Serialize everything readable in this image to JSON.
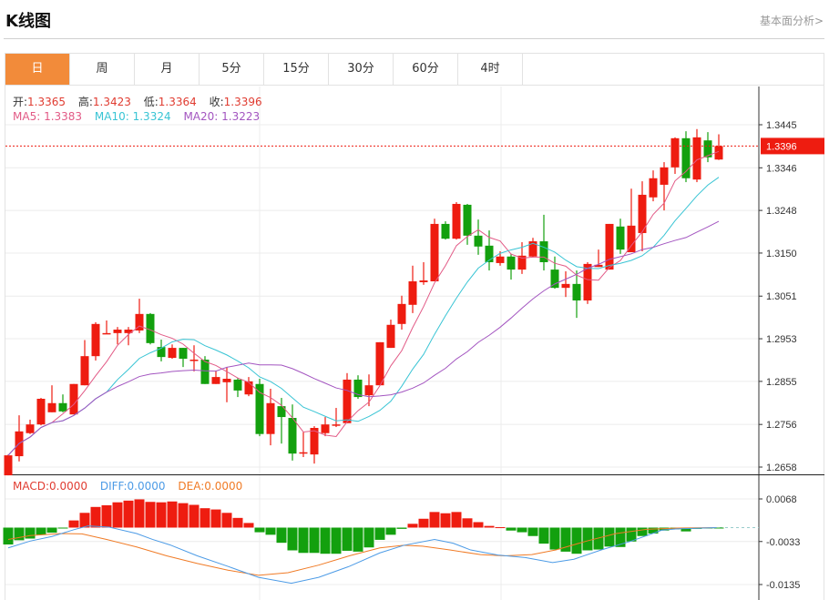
{
  "header": {
    "title": "K线图",
    "fundamental_link": "基本面分析>"
  },
  "tabs": [
    {
      "label": "日",
      "active": true
    },
    {
      "label": "周"
    },
    {
      "label": "月"
    },
    {
      "label": "5分"
    },
    {
      "label": "15分"
    },
    {
      "label": "30分"
    },
    {
      "label": "60分"
    },
    {
      "label": "4时"
    }
  ],
  "ohlc_info": {
    "open_label": "开:",
    "open": "1.3365",
    "high_label": "高:",
    "high": "1.3423",
    "low_label": "低:",
    "low": "1.3364",
    "close_label": "收:",
    "close": "1.3396"
  },
  "ma_info": {
    "ma5_label": "MA5:",
    "ma5": "1.3383",
    "ma10_label": "MA10:",
    "ma10": "1.3324",
    "ma20_label": "MA20:",
    "ma20": "1.3223"
  },
  "macd_info": {
    "macd_label": "MACD:",
    "macd": "0.0000",
    "diff_label": "DIFF:",
    "diff": "0.0000",
    "dea_label": "DEA:",
    "dea": "0.0000"
  },
  "colors": {
    "up": "#ee1c10",
    "down": "#13a00e",
    "ma5": "#e25a86",
    "ma10": "#38c4d4",
    "ma20": "#a355c0",
    "diff": "#4c9be6",
    "dea": "#f07b26",
    "accent": "#f28b3a"
  },
  "chart_data": {
    "type": "candlestick",
    "price_axis": {
      "ticks": [
        "1.3445",
        "1.3346",
        "1.3248",
        "1.3150",
        "1.3051",
        "1.2953",
        "1.2855",
        "1.2756",
        "1.2658"
      ],
      "range": [
        1.2658,
        1.3445
      ]
    },
    "current_price": "1.3396",
    "ohlc": [
      [
        1.2639,
        1.2687,
        1.2639,
        1.2685
      ],
      [
        1.2683,
        1.2777,
        1.2671,
        1.274
      ],
      [
        1.2736,
        1.2767,
        1.2734,
        1.2756
      ],
      [
        1.2756,
        1.2817,
        1.2754,
        1.2815
      ],
      [
        1.2784,
        1.2846,
        1.2784,
        1.2805
      ],
      [
        1.2805,
        1.2825,
        1.2784,
        1.2786
      ],
      [
        1.2779,
        1.2849,
        1.2779,
        1.2849
      ],
      [
        1.2846,
        1.295,
        1.2846,
        1.2913
      ],
      [
        1.2913,
        1.2991,
        1.2903,
        1.2987
      ],
      [
        1.2964,
        1.2995,
        1.2964,
        1.2966
      ],
      [
        1.2966,
        1.298,
        1.294,
        1.2974
      ],
      [
        1.2966,
        1.298,
        1.2938,
        1.2974
      ],
      [
        1.2972,
        1.3045,
        1.2966,
        1.301
      ],
      [
        1.301,
        1.3012,
        1.294,
        1.2943
      ],
      [
        1.2934,
        1.2951,
        1.2901,
        1.2911
      ],
      [
        1.2909,
        1.294,
        1.2907,
        1.2932
      ],
      [
        1.2932,
        1.2932,
        1.2888,
        1.2907
      ],
      [
        1.2903,
        1.2938,
        1.2878,
        1.2905
      ],
      [
        1.2905,
        1.2913,
        1.2849,
        1.2849
      ],
      [
        1.2849,
        1.288,
        1.2849,
        1.2865
      ],
      [
        1.2853,
        1.2888,
        1.2807,
        1.2861
      ],
      [
        1.2859,
        1.2863,
        1.2819,
        1.2834
      ],
      [
        1.2825,
        1.2865,
        1.2821,
        1.2855
      ],
      [
        1.2849,
        1.2861,
        1.2729,
        1.2734
      ],
      [
        1.2734,
        1.2838,
        1.2708,
        1.2805
      ],
      [
        1.2798,
        1.2817,
        1.2712,
        1.2773
      ],
      [
        1.2771,
        1.2802,
        1.2673,
        1.2689
      ],
      [
        1.2689,
        1.2738,
        1.2681,
        1.2692
      ],
      [
        1.2687,
        1.2752,
        1.2666,
        1.2748
      ],
      [
        1.2736,
        1.2773,
        1.2729,
        1.2756
      ],
      [
        1.2754,
        1.2794,
        1.275,
        1.2756
      ],
      [
        1.2759,
        1.2874,
        1.2759,
        1.2859
      ],
      [
        1.2859,
        1.2869,
        1.2815,
        1.2819
      ],
      [
        1.2823,
        1.2871,
        1.2798,
        1.2846
      ],
      [
        1.2846,
        1.2945,
        1.2846,
        1.2945
      ],
      [
        1.2932,
        1.2997,
        1.2932,
        1.2985
      ],
      [
        1.2987,
        1.3052,
        1.2974,
        1.3033
      ],
      [
        1.3031,
        1.3121,
        1.3012,
        1.3085
      ],
      [
        1.3083,
        1.3129,
        1.3077,
        1.3087
      ],
      [
        1.3085,
        1.3229,
        1.3085,
        1.3217
      ],
      [
        1.3217,
        1.3223,
        1.3181,
        1.3183
      ],
      [
        1.3183,
        1.3267,
        1.3181,
        1.3263
      ],
      [
        1.3261,
        1.3263,
        1.3169,
        1.319
      ],
      [
        1.319,
        1.3227,
        1.3146,
        1.3165
      ],
      [
        1.3167,
        1.3202,
        1.311,
        1.3129
      ],
      [
        1.3127,
        1.3154,
        1.3121,
        1.3142
      ],
      [
        1.3142,
        1.3148,
        1.3089,
        1.3112
      ],
      [
        1.3112,
        1.3175,
        1.3102,
        1.3144
      ],
      [
        1.3142,
        1.3185,
        1.314,
        1.3177
      ],
      [
        1.3177,
        1.3238,
        1.311,
        1.3129
      ],
      [
        1.3112,
        1.3142,
        1.3068,
        1.307
      ],
      [
        1.307,
        1.3108,
        1.3049,
        1.3079
      ],
      [
        1.3079,
        1.311,
        1.3001,
        1.3041
      ],
      [
        1.3041,
        1.3129,
        1.3033,
        1.3125
      ],
      [
        1.3118,
        1.3158,
        1.3118,
        1.3123
      ],
      [
        1.3112,
        1.3217,
        1.3112,
        1.3217
      ],
      [
        1.3211,
        1.3229,
        1.3148,
        1.3158
      ],
      [
        1.3152,
        1.3298,
        1.3152,
        1.3213
      ],
      [
        1.3196,
        1.3315,
        1.3154,
        1.3284
      ],
      [
        1.3278,
        1.334,
        1.3269,
        1.3322
      ],
      [
        1.3307,
        1.3359,
        1.3248,
        1.3347
      ],
      [
        1.3347,
        1.3416,
        1.3332,
        1.3414
      ],
      [
        1.3414,
        1.343,
        1.3313,
        1.3322
      ],
      [
        1.3319,
        1.3435,
        1.3313,
        1.3416
      ],
      [
        1.3409,
        1.3428,
        1.3359,
        1.337
      ],
      [
        1.3365,
        1.3423,
        1.3364,
        1.3396
      ]
    ],
    "macd_axis": {
      "ticks": [
        "0.0068",
        "-0.0033",
        "-0.0135"
      ],
      "range": [
        -0.0135,
        0.0068
      ]
    },
    "macd_hist": [
      -0.004,
      -0.003,
      -0.0026,
      -0.0017,
      -0.0012,
      -0.0002,
      0.0017,
      0.0035,
      0.0049,
      0.0053,
      0.006,
      0.0064,
      0.0067,
      0.0061,
      0.006,
      0.0062,
      0.0058,
      0.0054,
      0.0046,
      0.0043,
      0.0035,
      0.0023,
      0.0011,
      -0.0011,
      -0.0017,
      -0.0036,
      -0.0054,
      -0.006,
      -0.006,
      -0.0062,
      -0.0062,
      -0.0055,
      -0.0057,
      -0.0047,
      -0.0029,
      -0.0017,
      -0.0003,
      0.0009,
      0.0021,
      0.0037,
      0.0034,
      0.0037,
      0.0022,
      0.0013,
      0.0004,
      0.0001,
      -0.0007,
      -0.0011,
      -0.002,
      -0.0038,
      -0.0052,
      -0.0057,
      -0.0062,
      -0.0054,
      -0.0052,
      -0.0045,
      -0.0046,
      -0.0033,
      -0.002,
      -0.0014,
      -0.0007,
      -0.0004,
      -0.0009,
      -0.0003,
      -0.0002,
      -0.0001
    ],
    "diff": [
      [
        0,
        -0.0048
      ],
      [
        2,
        -0.0032
      ],
      [
        4,
        -0.0021
      ],
      [
        6,
        -0.0005
      ],
      [
        7.3,
        0.0004
      ],
      [
        9.25,
        0.0001
      ],
      [
        11.75,
        -0.0014
      ],
      [
        13.2,
        -0.0028
      ],
      [
        14.8,
        -0.0041
      ],
      [
        17.3,
        -0.0067
      ],
      [
        20.1,
        -0.0092
      ],
      [
        22.9,
        -0.0118
      ],
      [
        25.9,
        -0.0132
      ],
      [
        28.4,
        -0.0118
      ],
      [
        31.2,
        -0.0092
      ],
      [
        34,
        -0.006
      ],
      [
        36.2,
        -0.0042
      ],
      [
        39,
        -0.0028
      ],
      [
        40.7,
        -0.0037
      ],
      [
        42.3,
        -0.0053
      ],
      [
        44.8,
        -0.0065
      ],
      [
        47.3,
        -0.0071
      ],
      [
        49.8,
        -0.0083
      ],
      [
        51.75,
        -0.0075
      ],
      [
        54.25,
        -0.0053
      ],
      [
        57,
        -0.0032
      ],
      [
        59.8,
        -0.0006
      ],
      [
        61.2,
        -0.0003
      ],
      [
        64.8,
        0
      ]
    ],
    "dea": [
      [
        0,
        -0.0028
      ],
      [
        2,
        -0.0019
      ],
      [
        4.8,
        -0.0014
      ],
      [
        6.75,
        -0.0015
      ],
      [
        9,
        -0.0028
      ],
      [
        11.75,
        -0.0046
      ],
      [
        14.5,
        -0.0067
      ],
      [
        17.3,
        -0.0085
      ],
      [
        20.1,
        -0.0101
      ],
      [
        22.9,
        -0.0113
      ],
      [
        25.6,
        -0.0107
      ],
      [
        28.4,
        -0.0089
      ],
      [
        31.2,
        -0.0067
      ],
      [
        34,
        -0.0048
      ],
      [
        36.2,
        -0.0042
      ],
      [
        37.9,
        -0.0044
      ],
      [
        40.4,
        -0.0053
      ],
      [
        43.2,
        -0.0064
      ],
      [
        45.4,
        -0.0067
      ],
      [
        47.9,
        -0.0064
      ],
      [
        50.1,
        -0.0053
      ],
      [
        52.9,
        -0.0032
      ],
      [
        55.6,
        -0.0014
      ],
      [
        58.4,
        -0.0004
      ],
      [
        61.2,
        -0.0001
      ],
      [
        64.8,
        0
      ]
    ]
  }
}
